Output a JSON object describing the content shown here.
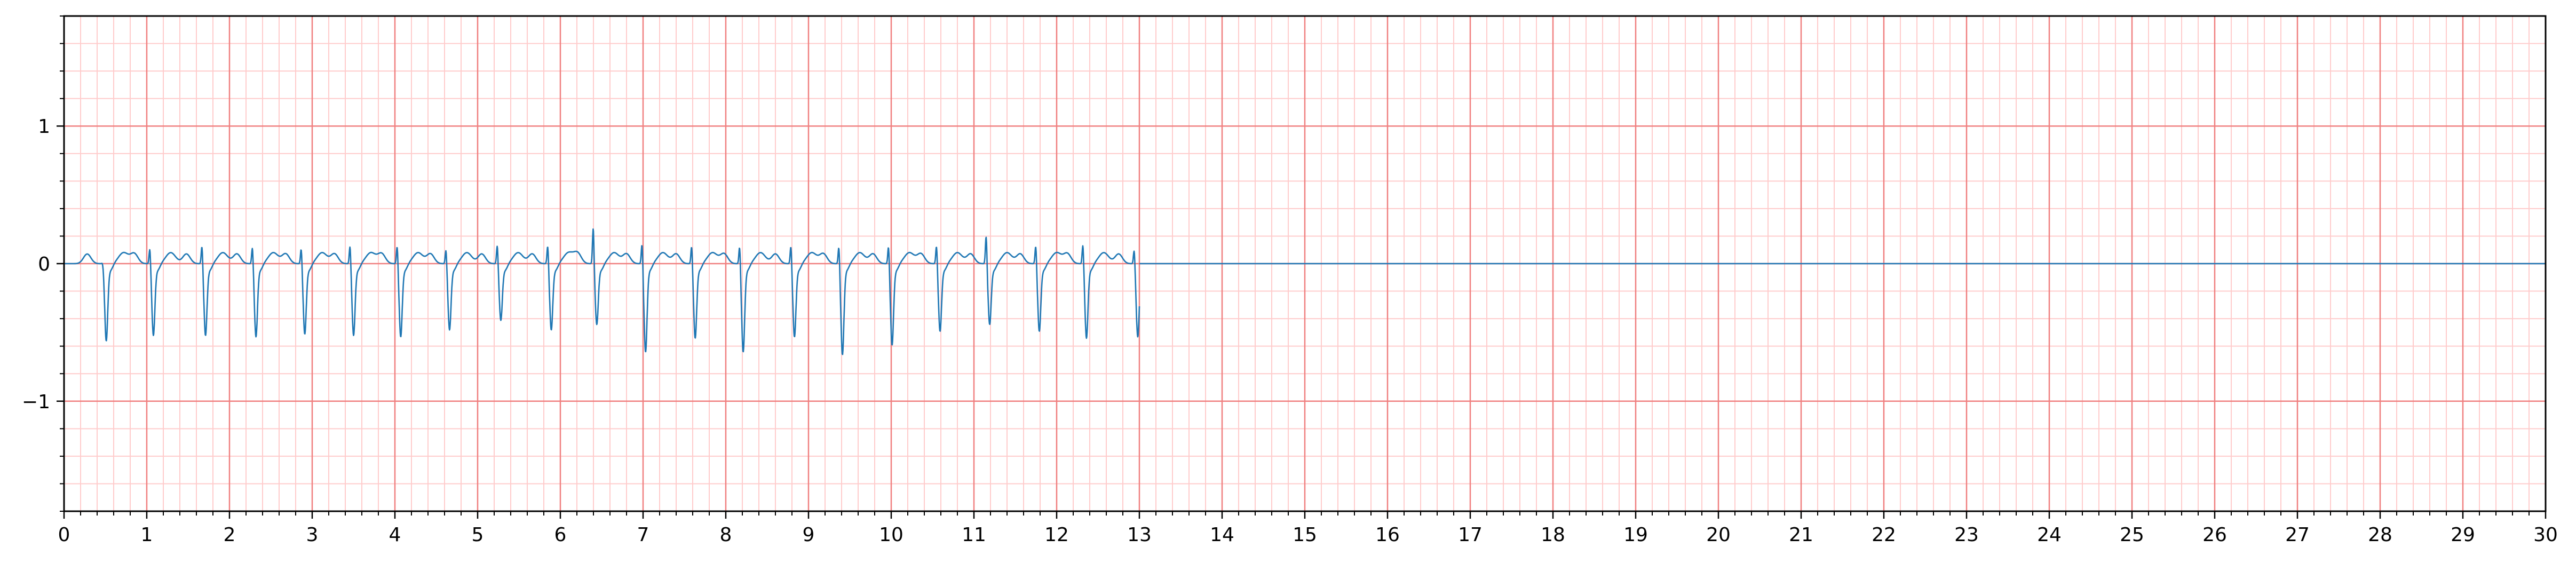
{
  "chart_data": {
    "type": "line",
    "title": "",
    "xlabel": "",
    "ylabel": "",
    "xlim": [
      0,
      30
    ],
    "ylim": [
      -1.8,
      1.8
    ],
    "x_ticks": [
      "0",
      "1",
      "2",
      "3",
      "4",
      "5",
      "6",
      "7",
      "8",
      "9",
      "10",
      "11",
      "12",
      "13",
      "14",
      "15",
      "16",
      "17",
      "18",
      "19",
      "20",
      "21",
      "22",
      "23",
      "24",
      "25",
      "26",
      "27",
      "28",
      "29",
      "30"
    ],
    "y_ticks": [
      {
        "value": 1,
        "label": "1"
      },
      {
        "value": 0,
        "label": "0"
      },
      {
        "value": -1,
        "label": "−1"
      }
    ],
    "grid": {
      "major": true,
      "minor": true,
      "major_x_step": 1,
      "major_y_step": 1,
      "minor_x_step": 0.2,
      "minor_y_step": 0.2,
      "major_color": "#f08080",
      "minor_color": "#ffcccc"
    },
    "colors": {
      "signal": "#1f77b4",
      "axis": "#000000"
    },
    "series": [
      {
        "signal_end": 13.0,
        "flat_value_after_end": 0,
        "beats": [
          {
            "t": 0.48,
            "r_peak": 0.02,
            "s_depth": -0.55
          },
          {
            "t": 1.05,
            "r_peak": 0.13,
            "s_depth": -0.51
          },
          {
            "t": 1.68,
            "r_peak": 0.15,
            "s_depth": -0.51
          },
          {
            "t": 2.29,
            "r_peak": 0.14,
            "s_depth": -0.52
          },
          {
            "t": 2.88,
            "r_peak": 0.13,
            "s_depth": -0.5
          },
          {
            "t": 3.47,
            "r_peak": 0.15,
            "s_depth": -0.51
          },
          {
            "t": 4.04,
            "r_peak": 0.15,
            "s_depth": -0.52
          },
          {
            "t": 4.63,
            "r_peak": 0.12,
            "s_depth": -0.47
          },
          {
            "t": 5.25,
            "r_peak": 0.15,
            "s_depth": -0.4
          },
          {
            "t": 5.86,
            "r_peak": 0.15,
            "s_depth": -0.47
          },
          {
            "t": 6.41,
            "r_peak": 0.28,
            "s_depth": -0.43
          },
          {
            "t": 7.0,
            "r_peak": 0.17,
            "s_depth": -0.63
          },
          {
            "t": 7.6,
            "r_peak": 0.15,
            "s_depth": -0.53
          },
          {
            "t": 8.18,
            "r_peak": 0.15,
            "s_depth": -0.63
          },
          {
            "t": 8.8,
            "r_peak": 0.15,
            "s_depth": -0.52
          },
          {
            "t": 9.38,
            "r_peak": 0.15,
            "s_depth": -0.65
          },
          {
            "t": 9.98,
            "r_peak": 0.15,
            "s_depth": -0.58
          },
          {
            "t": 10.56,
            "r_peak": 0.15,
            "s_depth": -0.48
          },
          {
            "t": 11.16,
            "r_peak": 0.22,
            "s_depth": -0.43
          },
          {
            "t": 11.76,
            "r_peak": 0.15,
            "s_depth": -0.48
          },
          {
            "t": 12.33,
            "r_peak": 0.16,
            "s_depth": -0.53
          },
          {
            "t": 12.95,
            "r_peak": 0.12,
            "s_depth": -0.52
          }
        ]
      }
    ]
  }
}
